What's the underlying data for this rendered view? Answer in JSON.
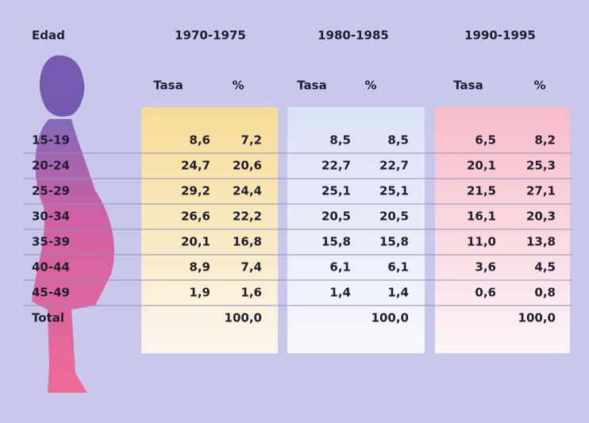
{
  "table": {
    "corner": "Edad",
    "groups": [
      "1970-1975",
      "1980-1985",
      "1990-1995"
    ],
    "subheaders": [
      [
        "Tasa",
        "%"
      ],
      [
        "Tasa",
        "%"
      ],
      [
        "Tasa",
        "%"
      ]
    ],
    "rows": [
      [
        "15-19",
        "8,6",
        "7,2",
        "8,5",
        "8,5",
        "6,5",
        "8,2"
      ],
      [
        "20-24",
        "24,7",
        "20,6",
        "22,7",
        "22,7",
        "20,1",
        "25,3"
      ],
      [
        "25-29",
        "29,2",
        "24,4",
        "25,1",
        "25,1",
        "21,5",
        "27,1"
      ],
      [
        "30-34",
        "26,6",
        "22,2",
        "20,5",
        "20,5",
        "16,1",
        "20,3"
      ],
      [
        "35-39",
        "20,1",
        "16,8",
        "15,8",
        "15,8",
        "11,0",
        "13,8"
      ],
      [
        "40-44",
        "8,9",
        "7,4",
        "6,1",
        "6,1",
        "3,6",
        "4,5"
      ],
      [
        "45-49",
        "1,9",
        "1,6",
        "1,4",
        "1,4",
        "0,6",
        "0,8"
      ]
    ],
    "total": {
      "label": "Total",
      "percents": [
        "100,0",
        "100,0",
        "100,0"
      ]
    }
  }
}
